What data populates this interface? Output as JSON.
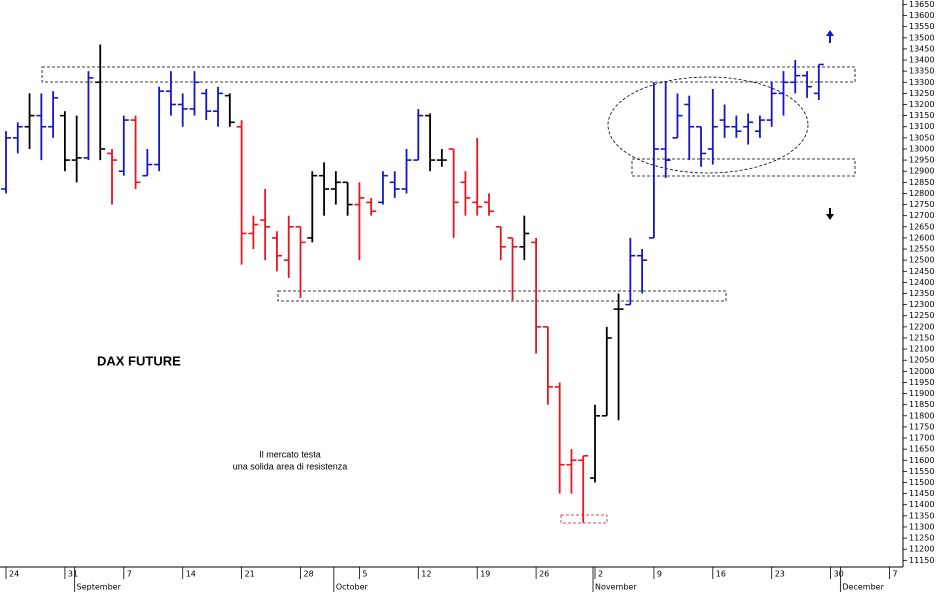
{
  "chart_data": {
    "type": "ohlc",
    "title": "DAX FUTURE",
    "note": [
      "Il mercato testa",
      "una solida area di resistenza"
    ],
    "axis_side": "right",
    "categories": [
      "24",
      null,
      null,
      null,
      null,
      "31",
      null,
      null,
      null,
      null,
      "7",
      null,
      null,
      null,
      null,
      "14",
      null,
      null,
      null,
      null,
      "21",
      null,
      null,
      null,
      null,
      "28",
      null,
      null,
      null,
      null,
      "5",
      null,
      null,
      null,
      null,
      "12",
      null,
      null,
      null,
      null,
      "19",
      null,
      null,
      null,
      null,
      "26",
      null,
      null,
      null,
      null,
      "2",
      null,
      null,
      null,
      null,
      "9",
      null,
      null,
      null,
      null,
      "16",
      null,
      null,
      null,
      null,
      "23",
      null,
      null,
      null,
      null,
      "30",
      null,
      null,
      null,
      null,
      "7"
    ],
    "months": [
      null,
      null,
      null,
      null,
      null,
      null,
      "September",
      null,
      null,
      null,
      null,
      null,
      null,
      null,
      null,
      null,
      null,
      null,
      null,
      null,
      null,
      null,
      null,
      null,
      null,
      null,
      null,
      null,
      "October",
      null,
      null,
      null,
      null,
      null,
      null,
      null,
      null,
      null,
      null,
      null,
      null,
      null,
      null,
      null,
      null,
      null,
      null,
      null,
      null,
      null,
      "November",
      null,
      null,
      null,
      null,
      null,
      null,
      null,
      null,
      null,
      null,
      null,
      null,
      null,
      null,
      null,
      null,
      null,
      null,
      null,
      null,
      "December",
      null,
      null,
      null,
      null
    ],
    "open": [
      12820,
      13050,
      13100,
      13150,
      13100,
      13150,
      12950,
      12960,
      13300,
      12980,
      12900,
      13130,
      12880,
      12930,
      13260,
      13200,
      13180,
      13250,
      13170,
      13240,
      13100,
      12620,
      12680,
      12600,
      12500,
      12650,
      12600,
      12880,
      12820,
      12850,
      12750,
      12760,
      12760,
      12850,
      12820,
      12950,
      13150,
      12950,
      13000,
      12850,
      12760,
      12760,
      12650,
      12600,
      12560,
      12580,
      12200,
      11930,
      11580,
      11600,
      11520,
      11800,
      12280,
      12300,
      12520,
      12600,
      13000,
      13050,
      13200,
      13100,
      13000,
      13130,
      13100,
      13100,
      13080,
      13130,
      13250,
      13300,
      13330,
      13250,
      null,
      null,
      null,
      null,
      null,
      null
    ],
    "high": [
      13080,
      13120,
      13250,
      13250,
      13260,
      13170,
      13150,
      13350,
      13470,
      13000,
      13150,
      13150,
      13000,
      13280,
      13350,
      13250,
      13350,
      13270,
      13280,
      13250,
      13130,
      12700,
      12820,
      12630,
      12700,
      12650,
      12900,
      12940,
      12900,
      12850,
      12850,
      12780,
      12900,
      12900,
      13000,
      13180,
      13160,
      13000,
      13000,
      12900,
      13050,
      12800,
      12650,
      12600,
      12700,
      12600,
      12200,
      11950,
      11650,
      11620,
      11850,
      12200,
      12350,
      12600,
      12550,
      13300,
      13300,
      13250,
      13240,
      13100,
      13270,
      13200,
      13150,
      13160,
      13150,
      13300,
      13350,
      13400,
      13350,
      13380,
      null,
      null,
      null,
      null,
      null,
      null
    ],
    "low": [
      12800,
      12980,
      13000,
      12950,
      13050,
      12900,
      12850,
      12950,
      12950,
      12750,
      12880,
      12820,
      12880,
      12900,
      13150,
      13100,
      13150,
      13130,
      13100,
      13100,
      12480,
      12550,
      12500,
      12450,
      12420,
      12330,
      12580,
      12700,
      12750,
      12700,
      12500,
      12700,
      12750,
      12780,
      12800,
      12950,
      12900,
      12920,
      12600,
      12700,
      12700,
      12700,
      12500,
      12320,
      12500,
      12080,
      11850,
      11450,
      11450,
      11320,
      11500,
      11800,
      11780,
      12300,
      12350,
      12600,
      12870,
      13050,
      12950,
      12920,
      12930,
      13050,
      13050,
      13020,
      13050,
      13100,
      13150,
      13250,
      13230,
      13220,
      null,
      null,
      null,
      null,
      null,
      null
    ],
    "close": [
      13050,
      13100,
      13150,
      13100,
      13230,
      12950,
      12960,
      13320,
      13000,
      12950,
      13130,
      12850,
      12930,
      13260,
      13200,
      13180,
      13300,
      13170,
      13250,
      13120,
      12620,
      12660,
      12650,
      12520,
      12650,
      12580,
      12880,
      12820,
      12850,
      12750,
      12780,
      12720,
      12880,
      12820,
      12950,
      13150,
      12950,
      12950,
      12760,
      12780,
      12740,
      12720,
      12560,
      12560,
      12620,
      12200,
      11930,
      11580,
      11600,
      11620,
      11800,
      12150,
      12280,
      12520,
      12500,
      13000,
      12950,
      13150,
      13100,
      12980,
      13100,
      13100,
      13080,
      13120,
      13130,
      13250,
      13300,
      13330,
      13280,
      13380,
      null,
      null,
      null,
      null,
      null,
      null
    ],
    "bar_colors": [
      "#1414c8",
      "#1414c8",
      "#000000",
      "#1414c8",
      "#1414c8",
      "#000000",
      "#000000",
      "#1414c8",
      "#000000",
      "#e8141e",
      "#1414c8",
      "#e8141e",
      "#1414c8",
      "#1414c8",
      "#1414c8",
      "#1414c8",
      "#1414c8",
      "#1414c8",
      "#1414c8",
      "#000000",
      "#e8141e",
      "#e8141e",
      "#e8141e",
      "#e8141e",
      "#e8141e",
      "#e8141e",
      "#000000",
      "#000000",
      "#000000",
      "#000000",
      "#e8141e",
      "#e8141e",
      "#1414c8",
      "#1414c8",
      "#1414c8",
      "#1414c8",
      "#000000",
      "#000000",
      "#e8141e",
      "#e8141e",
      "#e8141e",
      "#e8141e",
      "#e8141e",
      "#e8141e",
      "#000000",
      "#e8141e",
      "#e8141e",
      "#e8141e",
      "#e8141e",
      "#e8141e",
      "#000000",
      "#000000",
      "#000000",
      "#1414c8",
      "#1414c8",
      "#1414c8",
      "#1414c8",
      "#1414c8",
      "#1414c8",
      "#1414c8",
      "#1414c8",
      "#1414c8",
      "#1414c8",
      "#1414c8",
      "#1414c8",
      "#1414c8",
      "#1414c8",
      "#1414c8",
      "#1414c8",
      "#1414c8",
      null,
      null,
      null,
      null,
      null,
      null
    ],
    "ylim": [
      11120,
      13670
    ],
    "yticks": [
      11150,
      11200,
      11250,
      11300,
      11350,
      11400,
      11450,
      11500,
      11550,
      11600,
      11650,
      11700,
      11750,
      11800,
      11850,
      11900,
      11950,
      12000,
      12050,
      12100,
      12150,
      12200,
      12250,
      12300,
      12350,
      12400,
      12450,
      12500,
      12550,
      12600,
      12650,
      12700,
      12750,
      12800,
      12850,
      12900,
      12950,
      13000,
      13050,
      13100,
      13150,
      13200,
      13250,
      13300,
      13350,
      13400,
      13450,
      13500,
      13550,
      13600,
      13650
    ]
  }
}
